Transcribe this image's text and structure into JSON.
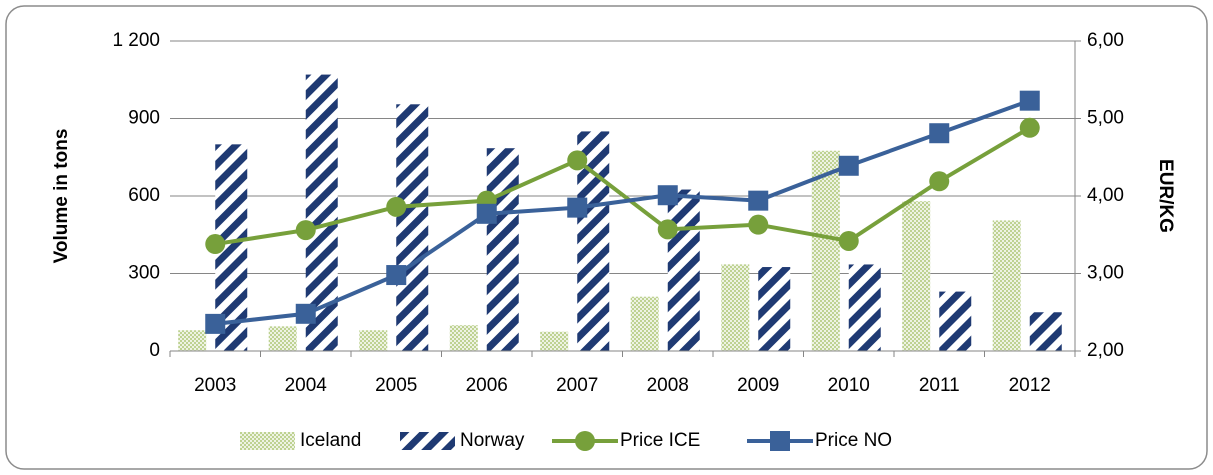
{
  "chart_data": {
    "type": "bar-line",
    "categories": [
      "2003",
      "2004",
      "2005",
      "2006",
      "2007",
      "2008",
      "2009",
      "2010",
      "2011",
      "2012"
    ],
    "y_label": "Volume in tons",
    "y2_label": "EUR/KG",
    "series": [
      {
        "name": "Iceland",
        "kind": "bar",
        "color": "#9bbb59",
        "values": [
          80,
          95,
          80,
          100,
          75,
          210,
          335,
          775,
          580,
          505
        ]
      },
      {
        "name": "Norway",
        "kind": "bar",
        "color": "#1f3a73",
        "values": [
          800,
          1070,
          955,
          785,
          850,
          625,
          325,
          335,
          230,
          150
        ]
      },
      {
        "name": "Price ICE",
        "kind": "line",
        "axis": "y2",
        "color": "#77a03b",
        "values": [
          3.38,
          3.56,
          3.86,
          3.94,
          4.46,
          3.57,
          3.63,
          3.42,
          4.19,
          4.88
        ]
      },
      {
        "name": "Price NO",
        "kind": "line",
        "axis": "y2",
        "color": "#3a6199",
        "values": [
          2.35,
          2.48,
          2.98,
          3.77,
          3.85,
          4.01,
          3.94,
          4.39,
          4.81,
          5.23
        ]
      }
    ],
    "ylim": [
      0,
      1200
    ],
    "yticks": [
      0,
      300,
      600,
      900,
      {
        "value": 1200,
        "label": "1 200"
      }
    ],
    "y2lim": [
      2,
      6
    ],
    "y2ticks": [
      {
        "value": 2,
        "label": "2,00"
      },
      {
        "value": 3,
        "label": "3,00"
      },
      {
        "value": 4,
        "label": "4,00"
      },
      {
        "value": 5,
        "label": "5,00"
      },
      {
        "value": 6,
        "label": "6,00"
      }
    ],
    "grid": true,
    "legend": "bottom"
  }
}
